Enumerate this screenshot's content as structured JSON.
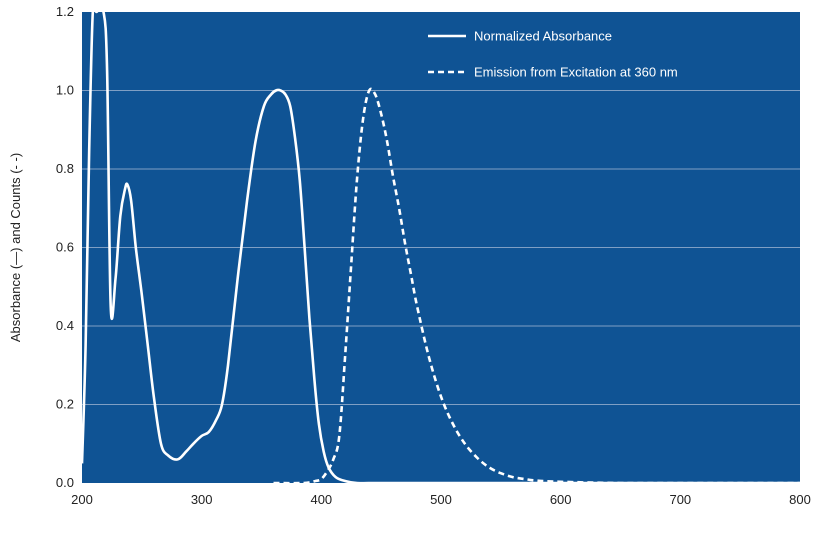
{
  "chart_data": {
    "type": "line",
    "xlabel": "",
    "ylabel": "Absorbance (—) and Counts (- -)",
    "xlim": [
      200,
      800
    ],
    "ylim": [
      0,
      1.2
    ],
    "x_ticks": [
      "200",
      "300",
      "400",
      "500",
      "600",
      "700",
      "800"
    ],
    "y_ticks": [
      "0.0",
      "0.2",
      "0.4",
      "0.6",
      "0.8",
      "1.0",
      "1.2"
    ],
    "grid": true,
    "legend_position": "top-right",
    "colors": {
      "plot_background": "#0f5394",
      "series": "#ffffff",
      "grid": "#7f9fc4"
    },
    "series": [
      {
        "name": "Normalized Absorbance",
        "style": "solid",
        "x": [
          200,
          203,
          206,
          209,
          212,
          218,
          221,
          224,
          228,
          232,
          236,
          238,
          241,
          245,
          250,
          255,
          260,
          266,
          272,
          280,
          287,
          293,
          300,
          306,
          312,
          317,
          322,
          330,
          338,
          345,
          352,
          358,
          362,
          366,
          370,
          374,
          378,
          382,
          386,
          390,
          394,
          398,
          402,
          406,
          412,
          420,
          430,
          450,
          500,
          600,
          800
        ],
        "y": [
          0.05,
          0.35,
          0.85,
          1.2,
          1.2,
          1.2,
          1.05,
          0.45,
          0.52,
          0.68,
          0.75,
          0.76,
          0.72,
          0.6,
          0.48,
          0.35,
          0.22,
          0.1,
          0.07,
          0.06,
          0.08,
          0.1,
          0.12,
          0.13,
          0.16,
          0.2,
          0.3,
          0.52,
          0.72,
          0.87,
          0.96,
          0.99,
          1.0,
          1.0,
          0.99,
          0.96,
          0.88,
          0.77,
          0.6,
          0.42,
          0.27,
          0.15,
          0.08,
          0.04,
          0.015,
          0.005,
          0.0,
          0.0,
          0.0,
          0.0,
          0.0
        ]
      },
      {
        "name": "Emission from Excitation at 360 nm",
        "style": "dashed",
        "x": [
          360,
          385,
          395,
          400,
          405,
          410,
          415,
          420,
          425,
          430,
          435,
          440,
          445,
          450,
          455,
          460,
          465,
          470,
          475,
          480,
          490,
          500,
          510,
          520,
          530,
          540,
          550,
          560,
          570,
          580,
          600,
          650,
          700,
          800
        ],
        "y": [
          0.0,
          0.0,
          0.005,
          0.01,
          0.03,
          0.06,
          0.12,
          0.33,
          0.56,
          0.78,
          0.93,
          1.0,
          0.99,
          0.94,
          0.87,
          0.78,
          0.7,
          0.61,
          0.53,
          0.45,
          0.32,
          0.22,
          0.15,
          0.1,
          0.065,
          0.04,
          0.025,
          0.015,
          0.01,
          0.006,
          0.003,
          0.0,
          0.0,
          0.0
        ]
      }
    ]
  }
}
